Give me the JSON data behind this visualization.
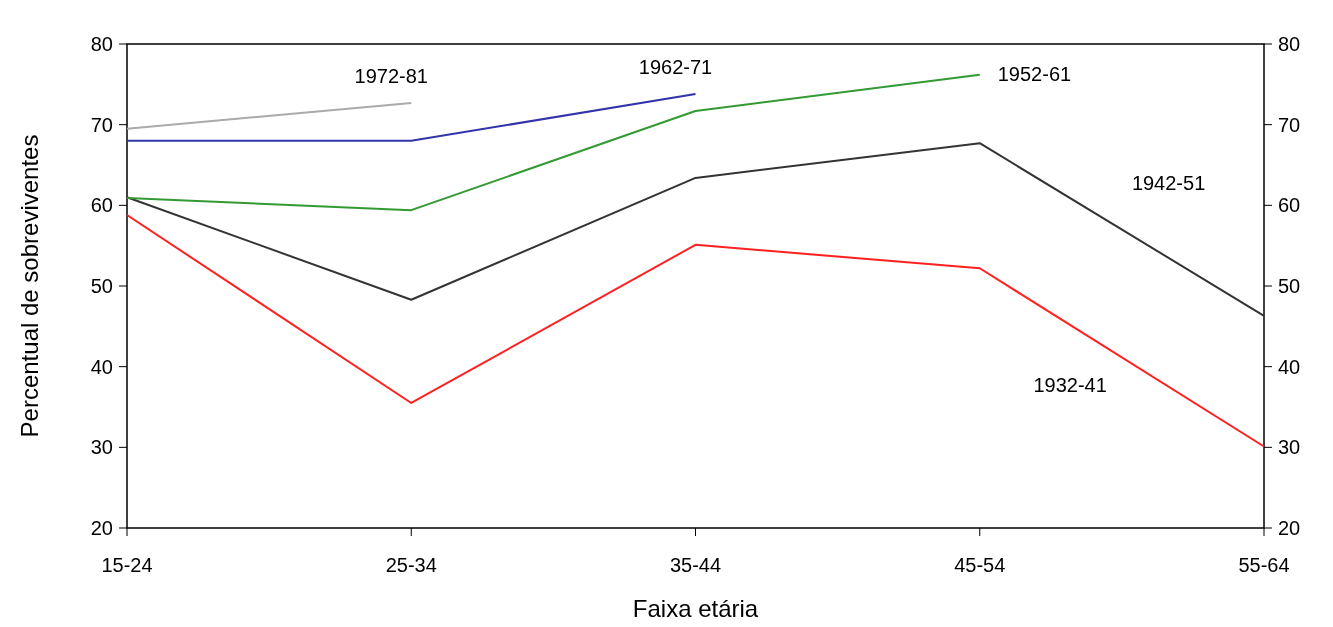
{
  "chart_data": {
    "type": "line",
    "xlabel": "Faixa etária",
    "ylabel": "Percentual de sobreviventes",
    "categories": [
      "15-24",
      "25-34",
      "35-44",
      "45-54",
      "55-64"
    ],
    "ylim": [
      20,
      80
    ],
    "yticks": [
      20,
      30,
      40,
      50,
      60,
      70,
      80
    ],
    "y2lim": [
      20,
      80
    ],
    "y2ticks": [
      20,
      30,
      40,
      50,
      60,
      70,
      80
    ],
    "grid": false,
    "marker": "none",
    "series": [
      {
        "name": "1932-41",
        "color": "#ff2020",
        "values": [
          58.8,
          35.5,
          55.1,
          52.2,
          30.1
        ]
      },
      {
        "name": "1942-51",
        "color": "#333333",
        "values": [
          61.0,
          48.3,
          63.4,
          67.7,
          46.3
        ]
      },
      {
        "name": "1952-61",
        "color": "#339933",
        "values": [
          60.9,
          59.4,
          71.7,
          76.2,
          null
        ]
      },
      {
        "name": "1962-71",
        "color": "#3333aa",
        "values": [
          68.0,
          68.0,
          73.8,
          null,
          null
        ]
      },
      {
        "name": "1972-81",
        "color": "#aaaaaa",
        "values": [
          69.5,
          72.7,
          null,
          null,
          null
        ]
      }
    ]
  }
}
